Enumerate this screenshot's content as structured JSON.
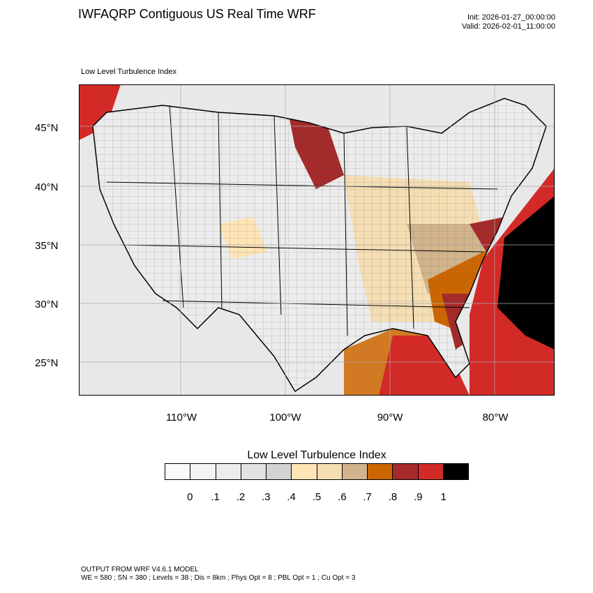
{
  "header": {
    "title": "IWFAQRP Contiguous US Real Time WRF",
    "init": "Init: 2026-01-27_00:00:00",
    "valid": "Valid: 2026-02-01_11:00:00"
  },
  "map": {
    "subtitle": "Low Level Turbulence Index",
    "latitude_labels": [
      "45°N",
      "40°N",
      "35°N",
      "30°N",
      "25°N"
    ],
    "longitude_labels": [
      "110°W",
      "100°W",
      "90°W",
      "80°W"
    ],
    "colors": {
      "background": "#e2e2e2",
      "ocean_high": "#d22a27",
      "ocean_max": "#000000",
      "tan": "#d2b48c",
      "orange": "#cc6600",
      "dark_red": "#a52a2a"
    }
  },
  "colorbar": {
    "title": "Low Level Turbulence Index",
    "colors": [
      "#fafafa",
      "#f3f3f3",
      "#ececec",
      "#e2e2e2",
      "#d3d3d3",
      "#ffe4b5",
      "#f5deb3",
      "#d2b48c",
      "#cc6600",
      "#a52a2a",
      "#d22a27",
      "#000000"
    ],
    "labels": [
      "0",
      ".1",
      ".2",
      ".3",
      ".4",
      ".5",
      ".6",
      ".7",
      ".8",
      ".9",
      "1"
    ]
  },
  "footer": {
    "line1": "OUTPUT FROM WRF V4.6.1 MODEL",
    "line2": "WE = 580 ; SN = 380 ; Levels = 38 ; Dis = 8km ; Phys Opt = 8 ; PBL Opt = 1 ; Cu Opt = 3"
  }
}
